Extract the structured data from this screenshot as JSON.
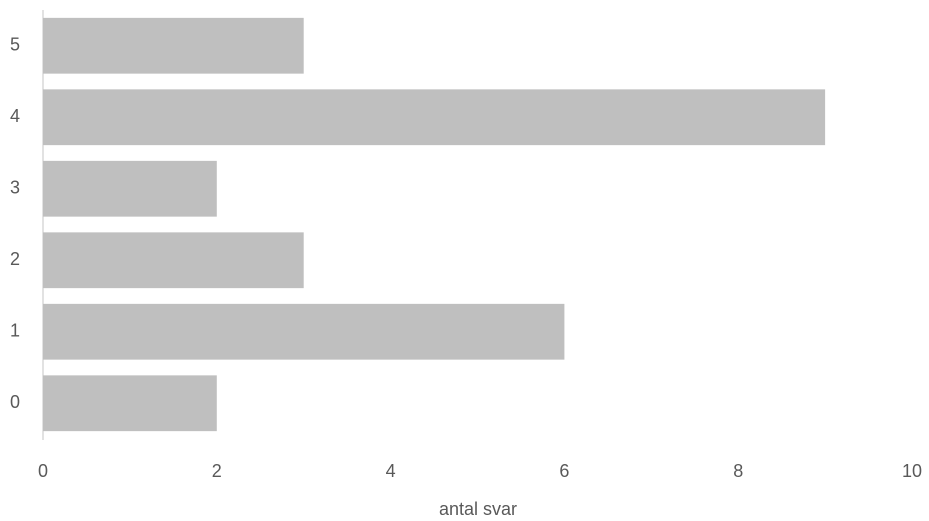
{
  "chart_data": {
    "type": "bar",
    "orientation": "horizontal",
    "categories": [
      "0",
      "1",
      "2",
      "3",
      "4",
      "5"
    ],
    "values": [
      2,
      6,
      3,
      2,
      9,
      3
    ],
    "color": "#bfbfbf",
    "xlim": [
      0,
      10
    ],
    "xticks": [
      0,
      2,
      4,
      6,
      8,
      10
    ],
    "x_label": "antal svar",
    "grid": false
  }
}
